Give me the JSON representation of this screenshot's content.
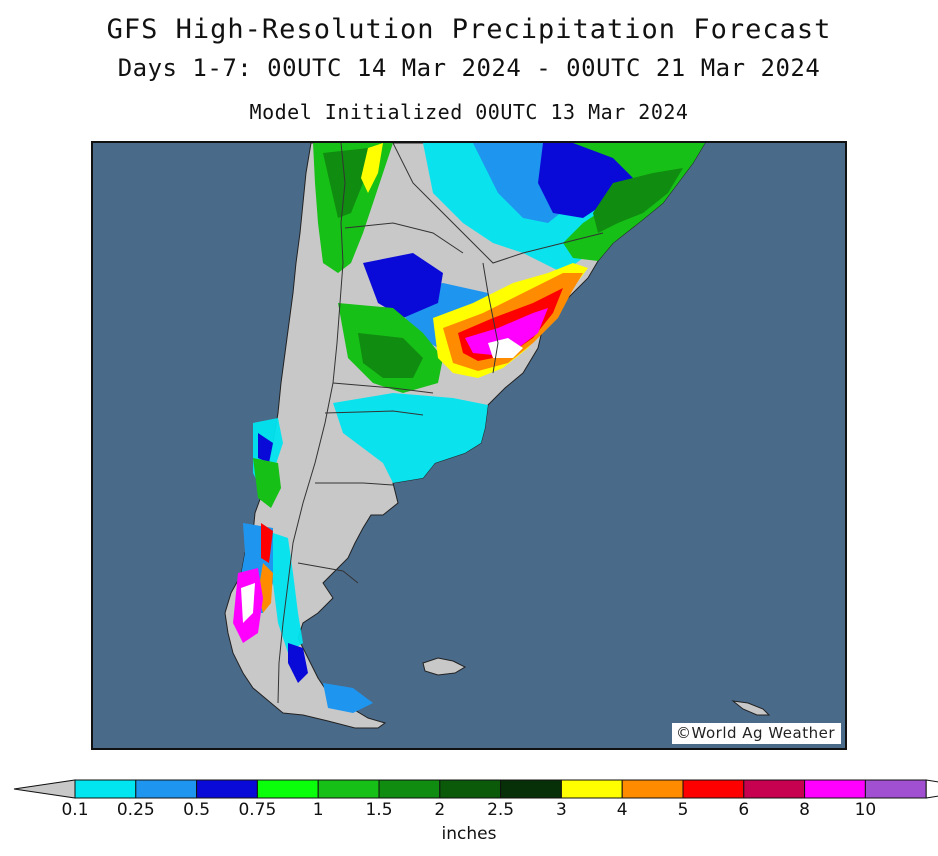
{
  "title": "GFS High-Resolution Precipitation Forecast",
  "subtitle": "Days 1-7: 00UTC 14 Mar 2024 - 00UTC 21 Mar 2024",
  "init": "Model Initialized 00UTC 13 Mar 2024",
  "credit": "©World Ag Weather",
  "colors": {
    "ocean": "#4a6a8a",
    "land": "#c8c8c8",
    "border": "#333333"
  },
  "legend": {
    "units": "inches",
    "bins": [
      {
        "color": "#c8c8c8"
      },
      {
        "color": "#00e5f0"
      },
      {
        "color": "#1e96f0"
      },
      {
        "color": "#0a0ad8"
      },
      {
        "color": "#0aff0a"
      },
      {
        "color": "#16c016"
      },
      {
        "color": "#108c10"
      },
      {
        "color": "#0a5a0a"
      },
      {
        "color": "#083008"
      },
      {
        "color": "#ffff00"
      },
      {
        "color": "#ff8c00"
      },
      {
        "color": "#ff0000"
      },
      {
        "color": "#c80050"
      },
      {
        "color": "#ff00ff"
      },
      {
        "color": "#a050d0"
      },
      {
        "color": "#ffffff"
      }
    ],
    "ticks": [
      "0.1",
      "0.25",
      "0.5",
      "0.75",
      "1",
      "1.5",
      "2",
      "2.5",
      "3",
      "4",
      "5",
      "6",
      "8",
      "10"
    ]
  }
}
